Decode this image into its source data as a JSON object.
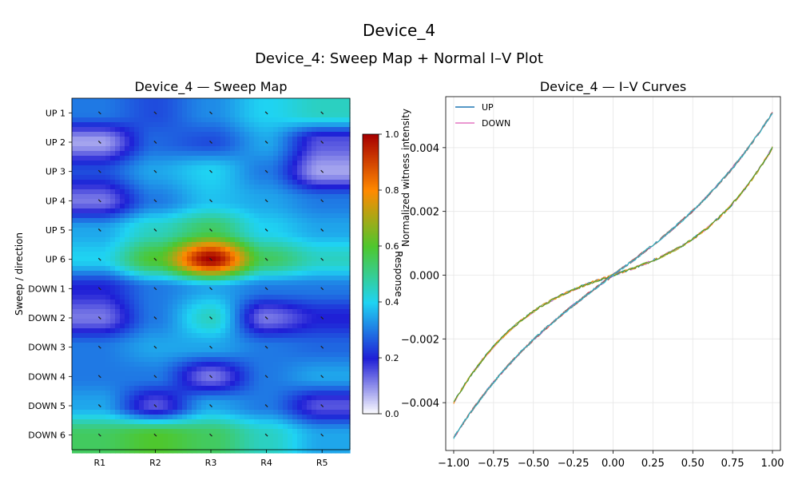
{
  "figure": {
    "suptitle": "Device_4",
    "title": "Device_4: Sweep Map + Normal I–V Plot"
  },
  "chart_data": [
    {
      "type": "heatmap",
      "title": "Device_4 — Sweep Map",
      "xlabel": "",
      "ylabel": "Sweep / direction",
      "x_categories": [
        "R1",
        "R2",
        "R3",
        "R4",
        "R5"
      ],
      "y_categories": [
        "UP 1",
        "UP 2",
        "UP 3",
        "UP 4",
        "UP 5",
        "UP 6",
        "DOWN 1",
        "DOWN 2",
        "DOWN 3",
        "DOWN 4",
        "DOWN 5",
        "DOWN 6"
      ],
      "values": [
        [
          0.3,
          0.25,
          0.32,
          0.4,
          0.45
        ],
        [
          0.08,
          0.28,
          0.25,
          0.35,
          0.15
        ],
        [
          0.25,
          0.35,
          0.4,
          0.3,
          0.08
        ],
        [
          0.12,
          0.3,
          0.38,
          0.35,
          0.3
        ],
        [
          0.35,
          0.45,
          0.55,
          0.4,
          0.35
        ],
        [
          0.4,
          0.6,
          1.0,
          0.55,
          0.45
        ],
        [
          0.2,
          0.3,
          0.35,
          0.3,
          0.3
        ],
        [
          0.12,
          0.3,
          0.45,
          0.12,
          0.2
        ],
        [
          0.3,
          0.35,
          0.35,
          0.3,
          0.28
        ],
        [
          0.3,
          0.3,
          0.12,
          0.3,
          0.35
        ],
        [
          0.35,
          0.15,
          0.35,
          0.3,
          0.15
        ],
        [
          0.55,
          0.6,
          0.55,
          0.45,
          0.35
        ]
      ],
      "colorbar": {
        "label": "Response",
        "range": [
          0.0,
          1.0
        ],
        "ticks": [
          "0.0",
          "0.2",
          "0.4",
          "0.6",
          "0.8",
          "1.0"
        ]
      },
      "colormap": [
        "#ffffff",
        "#1f1fd6",
        "#1fd3f2",
        "#4ec72e",
        "#ff8a00",
        "#a60000"
      ]
    },
    {
      "type": "line",
      "title": "Device_4 — I–V Curves",
      "xlabel": "",
      "ylabel": "Normalized witness intensity",
      "xlim": [
        -1.05,
        1.05
      ],
      "ylim": [
        -0.0055,
        0.0056
      ],
      "x_ticks": [
        "−1.00",
        "−0.75",
        "−0.50",
        "−0.25",
        "0.00",
        "0.25",
        "0.50",
        "0.75",
        "1.00"
      ],
      "y_ticks": [
        "−0.004",
        "−0.002",
        "0.000",
        "0.002",
        "0.004"
      ],
      "grid": true,
      "legend_position": "top-left",
      "legend": [
        {
          "name": "UP",
          "color": "#1f77b4"
        },
        {
          "name": "DOWN",
          "color": "#e377c2"
        }
      ],
      "model": {
        "lower_group": {
          "a": 0.0017,
          "b": 0.0023,
          "endpoint_y": 0.004
        },
        "upper_group": {
          "a": 0.0037,
          "b": 0.0014,
          "endpoint_y": 0.0051
        }
      },
      "series": [
        {
          "name": "UP",
          "group": "lower",
          "color": "#1f77b4",
          "seed": 1
        },
        {
          "name": "DOWN",
          "group": "lower",
          "color": "#e377c2",
          "seed": 2
        },
        {
          "name": "",
          "group": "lower",
          "color": "#bcbd22",
          "seed": 3
        },
        {
          "name": "",
          "group": "lower",
          "color": "#ff7f0e",
          "seed": 4
        },
        {
          "name": "",
          "group": "lower",
          "color": "#2ca02c",
          "seed": 5
        },
        {
          "name": "",
          "group": "upper",
          "color": "#d62728",
          "seed": 6
        },
        {
          "name": "",
          "group": "upper",
          "color": "#9467bd",
          "seed": 7
        },
        {
          "name": "",
          "group": "upper",
          "color": "#8c564b",
          "seed": 8
        },
        {
          "name": "",
          "group": "upper",
          "color": "#7f7f7f",
          "seed": 9
        },
        {
          "name": "",
          "group": "upper",
          "color": "#17becf",
          "seed": 10
        }
      ]
    }
  ]
}
